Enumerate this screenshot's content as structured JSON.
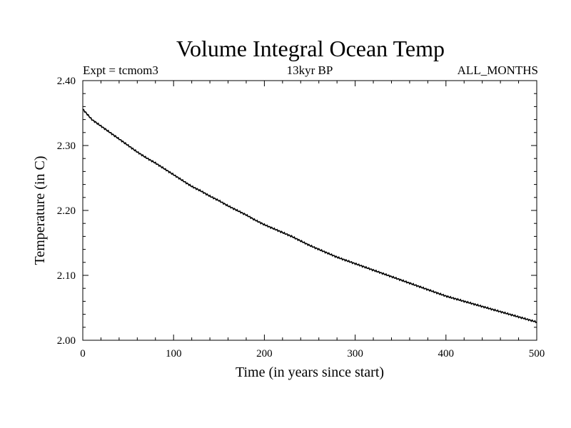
{
  "chart_data": {
    "type": "line",
    "title": "Volume Integral Ocean Temp",
    "subtitle_left": "Expt = tcmom3",
    "subtitle_center": "13kyr BP",
    "subtitle_right": "ALL_MONTHS",
    "xlabel": "Time (in years since start)",
    "ylabel": "Temperature (in C)",
    "xlim": [
      0,
      500
    ],
    "ylim": [
      2.0,
      2.4
    ],
    "x_ticks": [
      "0",
      "100",
      "200",
      "300",
      "400",
      "500"
    ],
    "y_ticks": [
      "2.00",
      "2.10",
      "2.20",
      "2.30",
      "2.40"
    ],
    "grid": false,
    "line_color": "#000000",
    "x": [
      0,
      10,
      20,
      30,
      40,
      50,
      60,
      70,
      80,
      90,
      100,
      110,
      120,
      130,
      140,
      150,
      160,
      170,
      180,
      190,
      200,
      210,
      220,
      230,
      240,
      250,
      260,
      270,
      280,
      290,
      300,
      310,
      320,
      330,
      340,
      350,
      360,
      370,
      380,
      390,
      400,
      410,
      420,
      430,
      440,
      450,
      460,
      470,
      480,
      490,
      500
    ],
    "y": [
      2.356,
      2.34,
      2.33,
      2.32,
      2.31,
      2.3,
      2.29,
      2.281,
      2.273,
      2.264,
      2.255,
      2.246,
      2.237,
      2.23,
      2.222,
      2.215,
      2.207,
      2.2,
      2.193,
      2.185,
      2.178,
      2.172,
      2.166,
      2.16,
      2.153,
      2.146,
      2.14,
      2.134,
      2.128,
      2.123,
      2.118,
      2.113,
      2.108,
      2.103,
      2.098,
      2.093,
      2.088,
      2.083,
      2.078,
      2.073,
      2.068,
      2.064,
      2.06,
      2.056,
      2.052,
      2.048,
      2.044,
      2.04,
      2.036,
      2.032,
      2.028
    ]
  }
}
